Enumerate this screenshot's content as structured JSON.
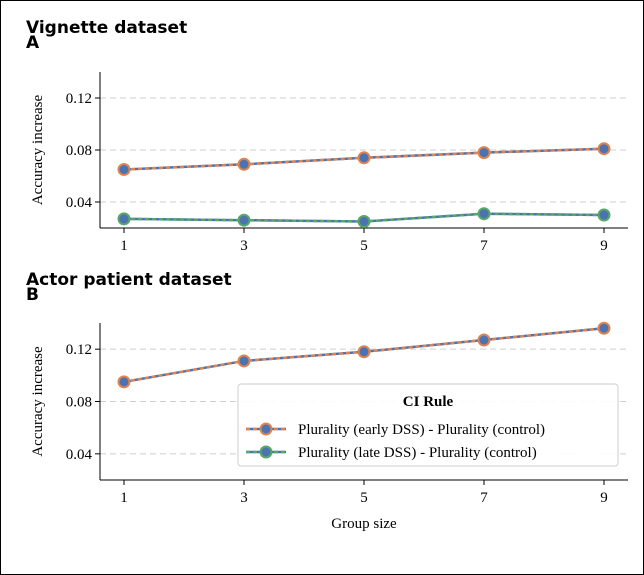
{
  "chart_data": [
    {
      "type": "line",
      "title": "Vignette dataset",
      "panel": "A",
      "ylabel": "Accuracy increase",
      "x": [
        1,
        3,
        5,
        7,
        9
      ],
      "xlim": [
        0.6,
        9.4
      ],
      "xticks": [
        1,
        3,
        5,
        7,
        9
      ],
      "ylim": [
        0.02,
        0.14
      ],
      "yticks": [
        0.04,
        0.08,
        0.12
      ],
      "grid": true,
      "series": [
        {
          "name": "Plurality (early DSS) - Plurality (control)",
          "color": "#dd8452",
          "marker_color": "#4c72b0",
          "values": [
            0.065,
            0.069,
            0.074,
            0.078,
            0.081
          ]
        },
        {
          "name": "Plurality (late DSS) - Plurality (control)",
          "color": "#55a868",
          "marker_color": "#4c72b0",
          "values": [
            0.027,
            0.026,
            0.025,
            0.031,
            0.03
          ]
        }
      ]
    },
    {
      "type": "line",
      "title": "Actor patient dataset",
      "panel": "B",
      "ylabel": "Accuracy increase",
      "xlabel": "Group size",
      "x": [
        1,
        3,
        5,
        7,
        9
      ],
      "xlim": [
        0.6,
        9.4
      ],
      "xticks": [
        1,
        3,
        5,
        7,
        9
      ],
      "ylim": [
        0.02,
        0.14
      ],
      "yticks": [
        0.04,
        0.08,
        0.12
      ],
      "grid": true,
      "legend_title": "CI Rule",
      "legend_loc": "lower right",
      "series": [
        {
          "name": "Plurality (early DSS) - Plurality (control)",
          "color": "#dd8452",
          "marker_color": "#4c72b0",
          "values": [
            0.095,
            0.111,
            0.118,
            0.127,
            0.136
          ]
        },
        {
          "name": "Plurality (late DSS) - Plurality (control)",
          "color": "#55a868",
          "marker_color": "#4c72b0",
          "values": [
            null,
            null,
            null,
            null,
            null
          ]
        }
      ]
    }
  ]
}
